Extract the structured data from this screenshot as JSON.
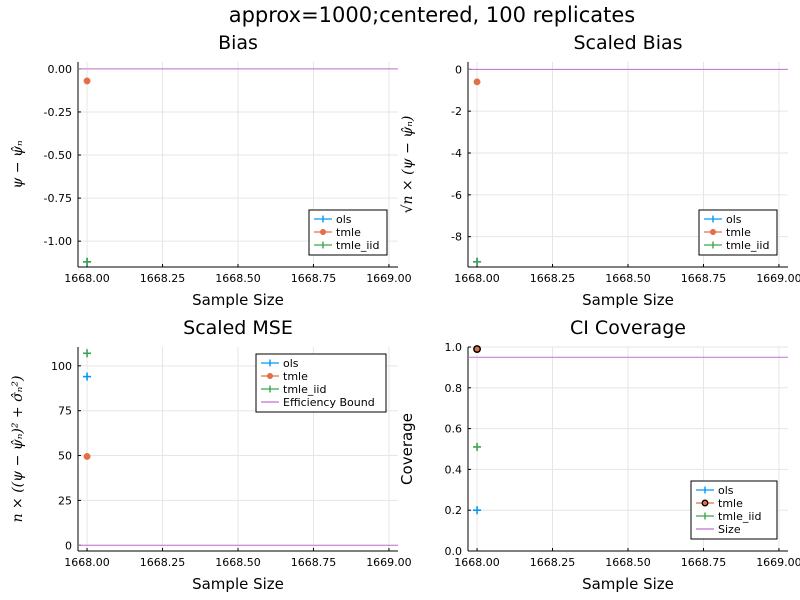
{
  "figure": {
    "title": "approx=1000;centered, 100 replicates"
  },
  "chart_data": [
    {
      "id": "bias",
      "type": "scatter",
      "title": "Bias",
      "xlabel": "Sample Size",
      "ylabel": "ψ − ψ̂ₙ",
      "xlim": [
        1667.97,
        1669.03
      ],
      "ylim": [
        -1.15,
        0.04
      ],
      "xticks": [
        1668.0,
        1668.25,
        1668.5,
        1668.75,
        1669.0
      ],
      "xtick_labels": [
        "1668.00",
        "1668.25",
        "1668.50",
        "1668.75",
        "1669.00"
      ],
      "yticks": [
        0.0,
        -0.25,
        -0.5,
        -0.75,
        -1.0
      ],
      "ytick_labels": [
        "0.00",
        "-0.25",
        "-0.50",
        "-0.75",
        "-1.00"
      ],
      "grid": true,
      "legend_position": "bottom-right",
      "series": [
        {
          "name": "ols",
          "marker": "plus",
          "color": "#009AFA",
          "x": [
            1668.0
          ],
          "y": [
            -1.12
          ]
        },
        {
          "name": "tmle",
          "marker": "circle",
          "color": "#E36F47",
          "x": [
            1668.0
          ],
          "y": [
            -0.07
          ]
        },
        {
          "name": "tmle_iid",
          "marker": "plus",
          "color": "#3EA44E",
          "x": [
            1668.0
          ],
          "y": [
            -1.12
          ]
        }
      ],
      "hlines": [
        {
          "y": 0.0,
          "color": "#C271D2"
        }
      ]
    },
    {
      "id": "scaled-bias",
      "type": "scatter",
      "title": "Scaled Bias",
      "xlabel": "Sample Size",
      "ylabel": "√n × (ψ − ψ̂ₙ)",
      "xlim": [
        1667.97,
        1669.03
      ],
      "ylim": [
        -9.45,
        0.35
      ],
      "xticks": [
        1668.0,
        1668.25,
        1668.5,
        1668.75,
        1669.0
      ],
      "xtick_labels": [
        "1668.00",
        "1668.25",
        "1668.50",
        "1668.75",
        "1669.00"
      ],
      "yticks": [
        0,
        -2,
        -4,
        -6,
        -8
      ],
      "ytick_labels": [
        "0",
        "-2",
        "-4",
        "-6",
        "-8"
      ],
      "grid": true,
      "legend_position": "bottom-right",
      "series": [
        {
          "name": "ols",
          "marker": "plus",
          "color": "#009AFA",
          "x": [
            1668.0
          ],
          "y": [
            -9.2
          ]
        },
        {
          "name": "tmle",
          "marker": "circle",
          "color": "#E36F47",
          "x": [
            1668.0
          ],
          "y": [
            -0.6
          ]
        },
        {
          "name": "tmle_iid",
          "marker": "plus",
          "color": "#3EA44E",
          "x": [
            1668.0
          ],
          "y": [
            -9.2
          ]
        }
      ],
      "hlines": [
        {
          "y": 0.0,
          "color": "#C271D2"
        }
      ]
    },
    {
      "id": "scaled-mse",
      "type": "scatter",
      "title": "Scaled MSE",
      "xlabel": "Sample Size",
      "ylabel": "n × ((ψ − ψ̂ₙ)² + σ̂ₙ²)",
      "xlim": [
        1667.97,
        1669.03
      ],
      "ylim": [
        -3.2,
        110.5
      ],
      "xticks": [
        1668.0,
        1668.25,
        1668.5,
        1668.75,
        1669.0
      ],
      "xtick_labels": [
        "1668.00",
        "1668.25",
        "1668.50",
        "1668.75",
        "1669.00"
      ],
      "yticks": [
        0,
        25,
        50,
        75,
        100
      ],
      "ytick_labels": [
        "0",
        "25",
        "50",
        "75",
        "100"
      ],
      "grid": true,
      "legend_position": "top-right",
      "series": [
        {
          "name": "ols",
          "marker": "plus",
          "color": "#009AFA",
          "x": [
            1668.0
          ],
          "y": [
            94
          ]
        },
        {
          "name": "tmle",
          "marker": "circle",
          "color": "#E36F47",
          "x": [
            1668.0
          ],
          "y": [
            49.5
          ]
        },
        {
          "name": "tmle_iid",
          "marker": "plus",
          "color": "#3EA44E",
          "x": [
            1668.0
          ],
          "y": [
            107
          ]
        }
      ],
      "hlines": [
        {
          "name": "Efficiency Bound",
          "y": 0.0,
          "color": "#C271D2"
        }
      ]
    },
    {
      "id": "ci-coverage",
      "type": "scatter",
      "title": "CI Coverage",
      "xlabel": "Sample Size",
      "ylabel": "Coverage",
      "xlim": [
        1667.97,
        1669.03
      ],
      "ylim": [
        0.0,
        1.0
      ],
      "xticks": [
        1668.0,
        1668.25,
        1668.5,
        1668.75,
        1669.0
      ],
      "xtick_labels": [
        "1668.00",
        "1668.25",
        "1668.50",
        "1668.75",
        "1669.00"
      ],
      "yticks": [
        0.0,
        0.2,
        0.4,
        0.6,
        0.8,
        1.0
      ],
      "ytick_labels": [
        "0.0",
        "0.2",
        "0.4",
        "0.6",
        "0.8",
        "1.0"
      ],
      "grid": true,
      "legend_position": "bottom-right",
      "series": [
        {
          "name": "ols",
          "marker": "plus",
          "color": "#009AFA",
          "x": [
            1668.0
          ],
          "y": [
            0.2
          ]
        },
        {
          "name": "tmle",
          "marker": "circle-dark",
          "color": "#E36F47",
          "x": [
            1668.0
          ],
          "y": [
            0.99
          ]
        },
        {
          "name": "tmle_iid",
          "marker": "plus",
          "color": "#3EA44E",
          "x": [
            1668.0
          ],
          "y": [
            0.51
          ]
        }
      ],
      "hlines": [
        {
          "name": "Size",
          "y": 0.95,
          "color": "#C271D2"
        }
      ]
    }
  ]
}
